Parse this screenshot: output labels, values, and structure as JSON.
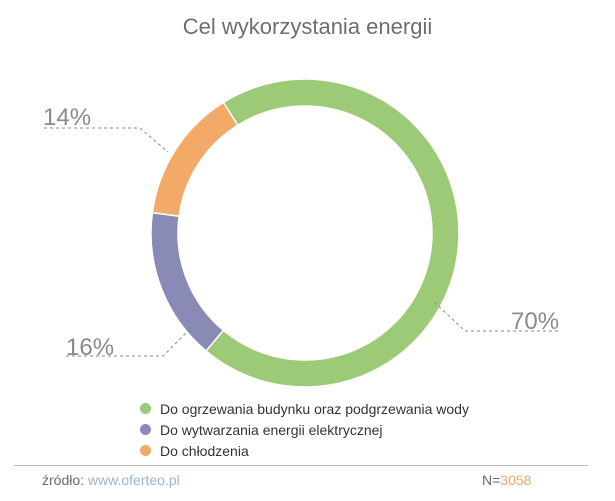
{
  "chart_data": {
    "type": "pie",
    "title": "Cel wykorzystania energii",
    "categories": [
      "Do ogrzewania budynku oraz podgrzewania wody",
      "Do wytwarzania energii elektrycznej",
      "Do chłodzenia"
    ],
    "values": [
      70,
      16,
      14
    ],
    "value_labels": [
      "70%",
      "16%",
      "14%"
    ],
    "colors": [
      "#9dca76",
      "#8a8ab6",
      "#f3aa68"
    ],
    "hole": true,
    "legend_placement": "bottom"
  },
  "footer": {
    "source_label": "źródło:",
    "source_link": "www.oferteo.pl",
    "sample_label": "N=",
    "sample_value": "3058"
  }
}
